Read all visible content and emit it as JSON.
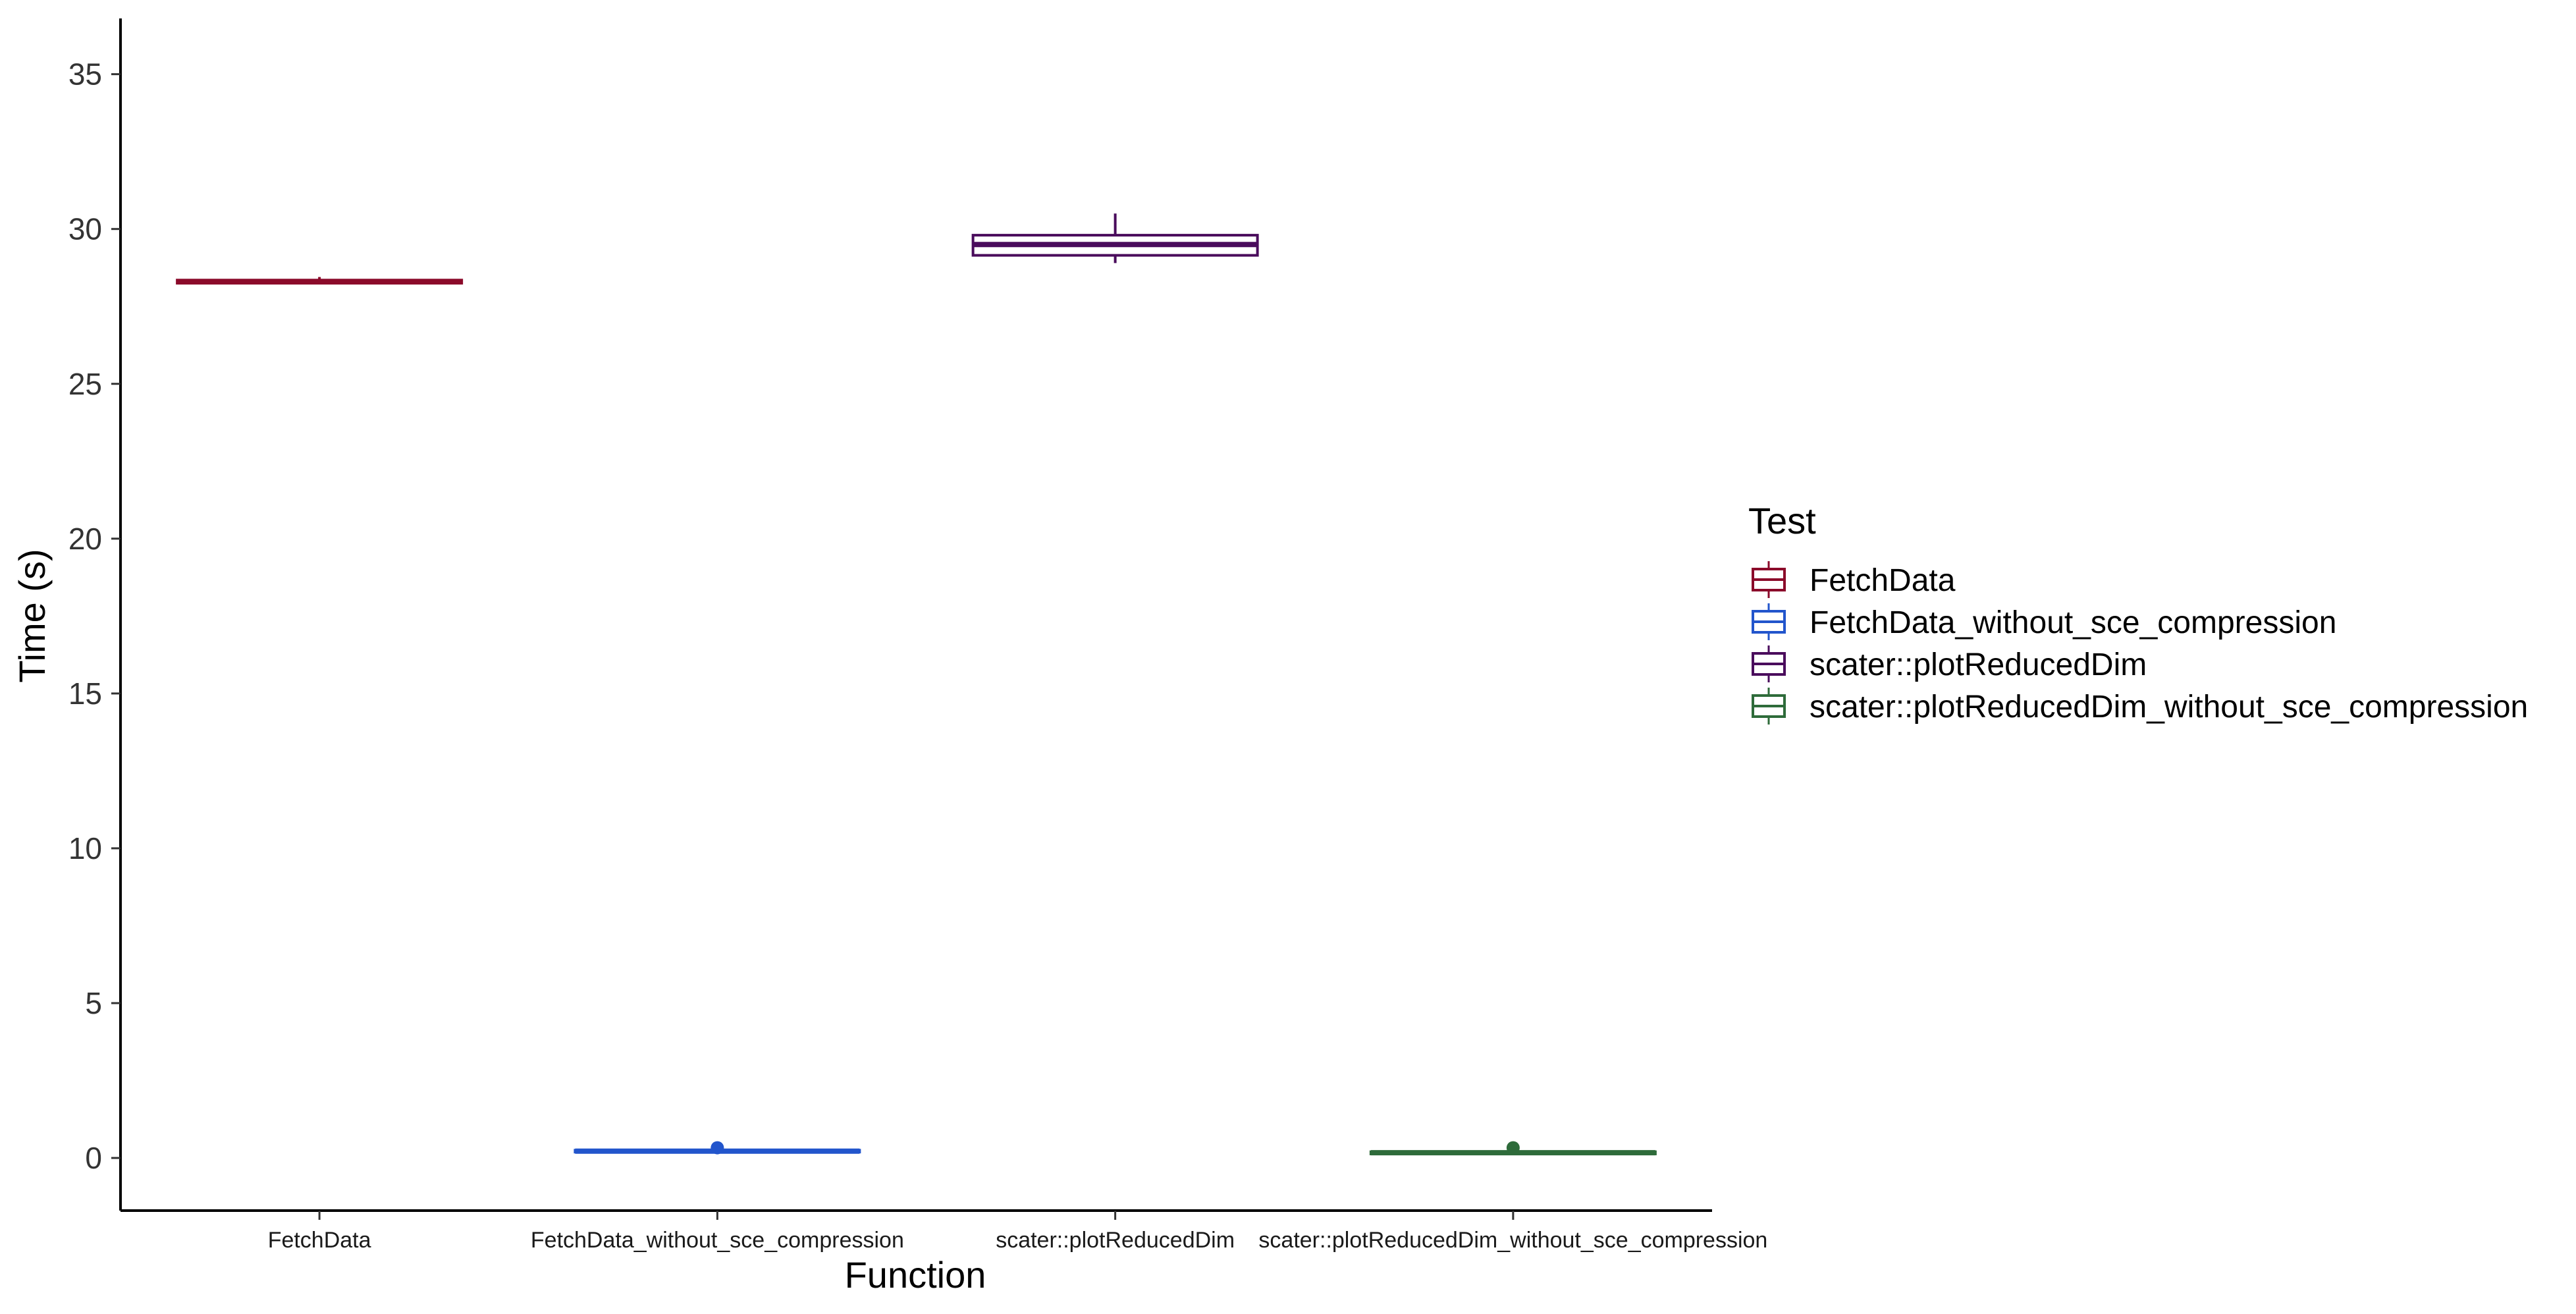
{
  "chart_data": {
    "type": "boxplot",
    "xlabel": "Function",
    "ylabel": "Time (s)",
    "ylim": [
      -1.7,
      36.8
    ],
    "yticks": [
      0,
      5,
      10,
      15,
      20,
      25,
      30,
      35
    ],
    "ytick_labels": [
      "0",
      "5",
      "10",
      "15",
      "20",
      "25",
      "30",
      "35"
    ],
    "categories": [
      "FetchData",
      "FetchData_without_sce_compression",
      "scater::plotReducedDim",
      "scater::plotReducedDim_without_sce_compression"
    ],
    "legend": {
      "title": "Test",
      "position": "right",
      "entries": [
        "FetchData",
        "FetchData_without_sce_compression",
        "scater::plotReducedDim",
        "scater::plotReducedDim_without_sce_compression"
      ]
    },
    "series": [
      {
        "category": "FetchData",
        "color": "#8b0a2a",
        "q1": 28.25,
        "median": 28.3,
        "q3": 28.35,
        "whisker_low": 28.25,
        "whisker_high": 28.45,
        "outliers": []
      },
      {
        "category": "FetchData_without_sce_compression",
        "color": "#2255cc",
        "q1": 0.19,
        "median": 0.22,
        "q3": 0.25,
        "whisker_low": 0.19,
        "whisker_high": 0.25,
        "outliers": [
          0.33
        ]
      },
      {
        "category": "scater::plotReducedDim",
        "color": "#4a0c5c",
        "q1": 29.15,
        "median": 29.5,
        "q3": 29.8,
        "whisker_low": 28.9,
        "whisker_high": 30.5,
        "outliers": []
      },
      {
        "category": "scater::plotReducedDim_without_sce_compression",
        "color": "#2e6b3a",
        "q1": 0.13,
        "median": 0.17,
        "q3": 0.2,
        "whisker_low": 0.13,
        "whisker_high": 0.2,
        "outliers": [
          0.33
        ]
      }
    ],
    "grid": false
  }
}
